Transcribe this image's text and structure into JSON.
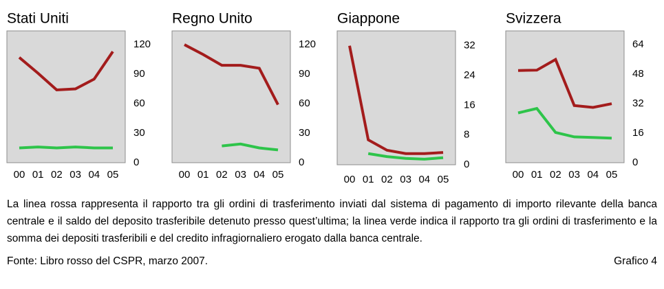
{
  "chart_data": [
    {
      "type": "line",
      "title": "Stati Uniti",
      "categories": [
        "00",
        "01",
        "02",
        "03",
        "04",
        "05"
      ],
      "series": [
        {
          "color": "#a31c1c",
          "values": [
            107,
            91,
            74,
            75,
            85,
            113
          ]
        },
        {
          "color": "#2ec44a",
          "values": [
            15,
            16,
            15,
            16,
            15,
            15
          ]
        }
      ],
      "ylim": [
        0,
        134
      ],
      "yticks": [
        0,
        30,
        60,
        90,
        120
      ]
    },
    {
      "type": "line",
      "title": "Regno Unito",
      "categories": [
        "00",
        "01",
        "02",
        "03",
        "04",
        "05"
      ],
      "series": [
        {
          "color": "#a31c1c",
          "values": [
            120,
            110,
            99,
            99,
            96,
            59
          ]
        },
        {
          "color": "#2ec44a",
          "values": [
            null,
            null,
            17,
            19,
            15,
            13
          ]
        }
      ],
      "ylim": [
        0,
        134
      ],
      "yticks": [
        0,
        30,
        60,
        90,
        120
      ]
    },
    {
      "type": "line",
      "title": "Giappone",
      "categories": [
        "00",
        "01",
        "02",
        "03",
        "04",
        "05"
      ],
      "series": [
        {
          "color": "#a31c1c",
          "values": [
            32,
            6.7,
            3.9,
            3,
            3,
            3.3
          ]
        },
        {
          "color": "#2ec44a",
          "values": [
            null,
            3,
            2.2,
            1.7,
            1.5,
            1.9
          ]
        }
      ],
      "ylim": [
        0,
        36
      ],
      "yticks": [
        0,
        8,
        16,
        24,
        32
      ]
    },
    {
      "type": "line",
      "title": "Svizzera",
      "categories": [
        "00",
        "01",
        "02",
        "03",
        "04",
        "05"
      ],
      "series": [
        {
          "color": "#a31c1c",
          "values": [
            50,
            50.2,
            56,
            31,
            30,
            32
          ]
        },
        {
          "color": "#2ec44a",
          "values": [
            27,
            29.4,
            16.4,
            14,
            13.7,
            13.3
          ]
        }
      ],
      "ylim": [
        0,
        71.5
      ],
      "yticks": [
        0,
        16,
        32,
        48,
        64
      ]
    }
  ],
  "caption": "La linea rossa rappresenta il rapporto tra gli ordini di trasferimento inviati dal sistema di pagamento di importo rilevante della banca centrale e il saldo del deposito trasferibile detenuto presso quest’ultima; la linea verde indica il rapporto tra gli ordini di trasferimento e la somma dei depositi trasferibili e del credito infragiornaliero erogato dalla banca centrale.",
  "source": "Fonte: Libro rosso del CSPR, marzo 2007.",
  "figure_label": "Grafico 4"
}
